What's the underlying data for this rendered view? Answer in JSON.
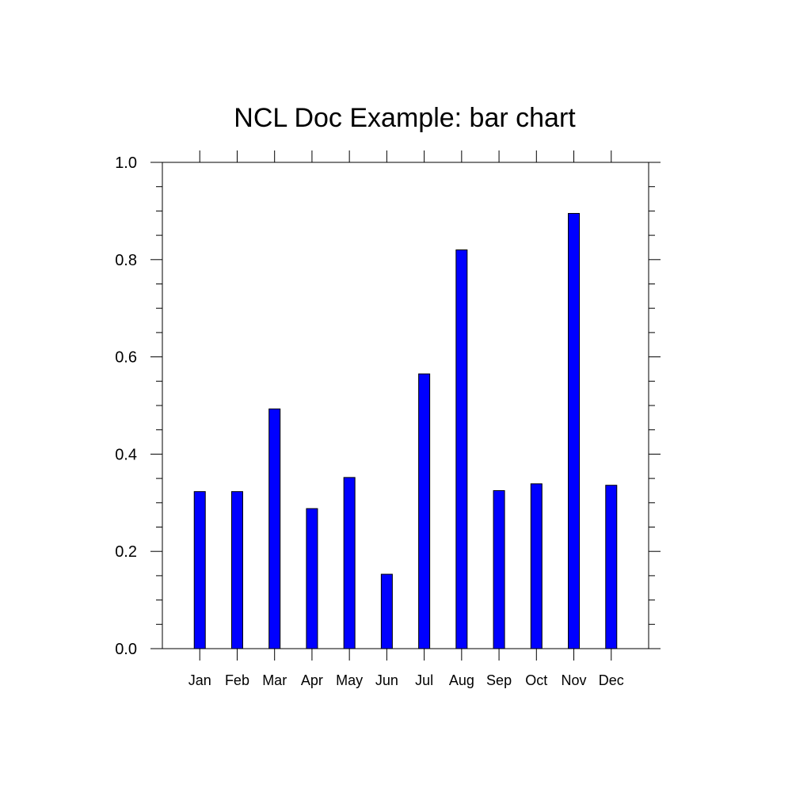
{
  "chart_data": {
    "type": "bar",
    "title": "NCL Doc Example: bar chart",
    "xlabel": "",
    "ylabel": "",
    "categories": [
      "Jan",
      "Feb",
      "Mar",
      "Apr",
      "May",
      "Jun",
      "Jul",
      "Aug",
      "Sep",
      "Oct",
      "Nov",
      "Dec"
    ],
    "values": [
      0.323,
      0.323,
      0.493,
      0.288,
      0.352,
      0.153,
      0.565,
      0.82,
      0.325,
      0.339,
      0.895,
      0.336
    ],
    "ylim": [
      0.0,
      1.0
    ],
    "xlim": [
      0,
      13
    ],
    "yticks": [
      "0.0",
      "0.2",
      "0.4",
      "0.6",
      "0.8",
      "1.0"
    ],
    "grid": false,
    "legend": "none",
    "bar_color": "#0000ff",
    "bar_edge_color": "#000000"
  }
}
